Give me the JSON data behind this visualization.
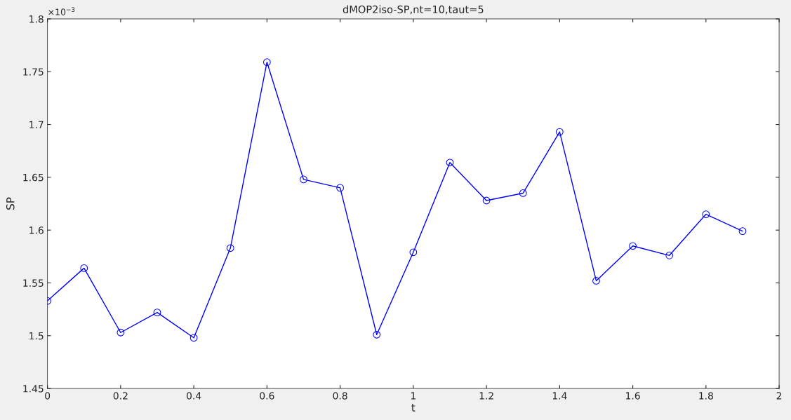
{
  "chart_data": {
    "type": "line",
    "title": "dMOP2iso-SP,nt=10,taut=5",
    "xlabel": "t",
    "ylabel": "SP",
    "annotations": [
      "×10$^{−3}$"
    ],
    "x": [
      0,
      0.1,
      0.2,
      0.3,
      0.4,
      0.5,
      0.6,
      0.7,
      0.8,
      0.9,
      1.0,
      1.1,
      1.2,
      1.3,
      1.4,
      1.5,
      1.6,
      1.7,
      1.8,
      1.9
    ],
    "series": [
      {
        "color": "#0000ff",
        "values": [
          1.533,
          1.564,
          1.503,
          1.522,
          1.498,
          1.583,
          1.759,
          1.648,
          1.64,
          1.501,
          1.579,
          1.664,
          1.628,
          1.635,
          1.693,
          1.552,
          1.585,
          1.576,
          1.615,
          1.599
        ]
      }
    ],
    "xlim": [
      0,
      2
    ],
    "xticks": [
      0,
      0.2,
      0.4,
      0.6,
      0.8,
      1,
      1.2,
      1.4,
      1.6,
      1.8,
      2
    ],
    "ylim": [
      1.45,
      1.8
    ],
    "yticks": [
      1.45,
      1.5,
      1.55,
      1.6,
      1.65,
      1.7,
      1.75,
      1.8
    ],
    "marker": "circle",
    "line_style": "solid",
    "grid": false,
    "legend": false
  }
}
